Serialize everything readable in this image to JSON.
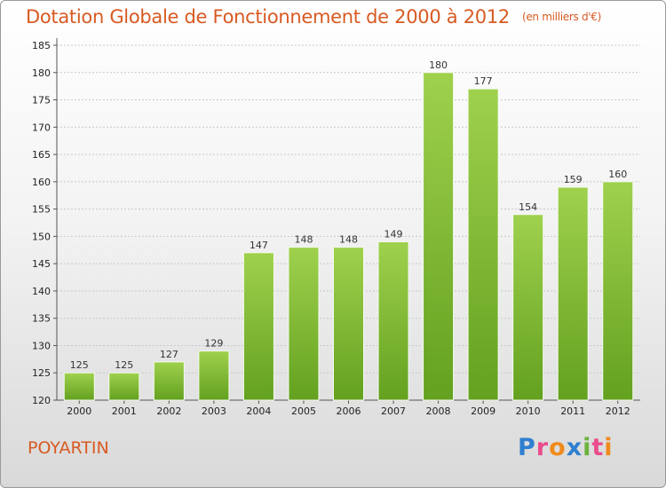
{
  "header": {
    "title": "Dotation Globale de Fonctionnement de 2000 à 2012",
    "unit": "(en milliers d'€)"
  },
  "footer": {
    "commune": "POYARTIN",
    "logo_text": "Proxiti"
  },
  "colors": {
    "title": "#d85a22",
    "bar_light": "#9fd14d",
    "bar_dark": "#63a11f"
  },
  "chart_data": {
    "type": "bar",
    "title": "Dotation Globale de Fonctionnement de 2000 à 2012",
    "subtitle": "(en milliers d'€)",
    "categories": [
      "2000",
      "2001",
      "2002",
      "2003",
      "2004",
      "2005",
      "2006",
      "2007",
      "2008",
      "2009",
      "2010",
      "2011",
      "2012"
    ],
    "values": [
      125,
      125,
      127,
      129,
      147,
      148,
      148,
      149,
      180,
      177,
      154,
      159,
      160
    ],
    "ylim": [
      120,
      185
    ],
    "yticks": [
      120,
      125,
      130,
      135,
      140,
      145,
      150,
      155,
      160,
      165,
      170,
      175,
      180,
      185
    ],
    "grid": true
  }
}
